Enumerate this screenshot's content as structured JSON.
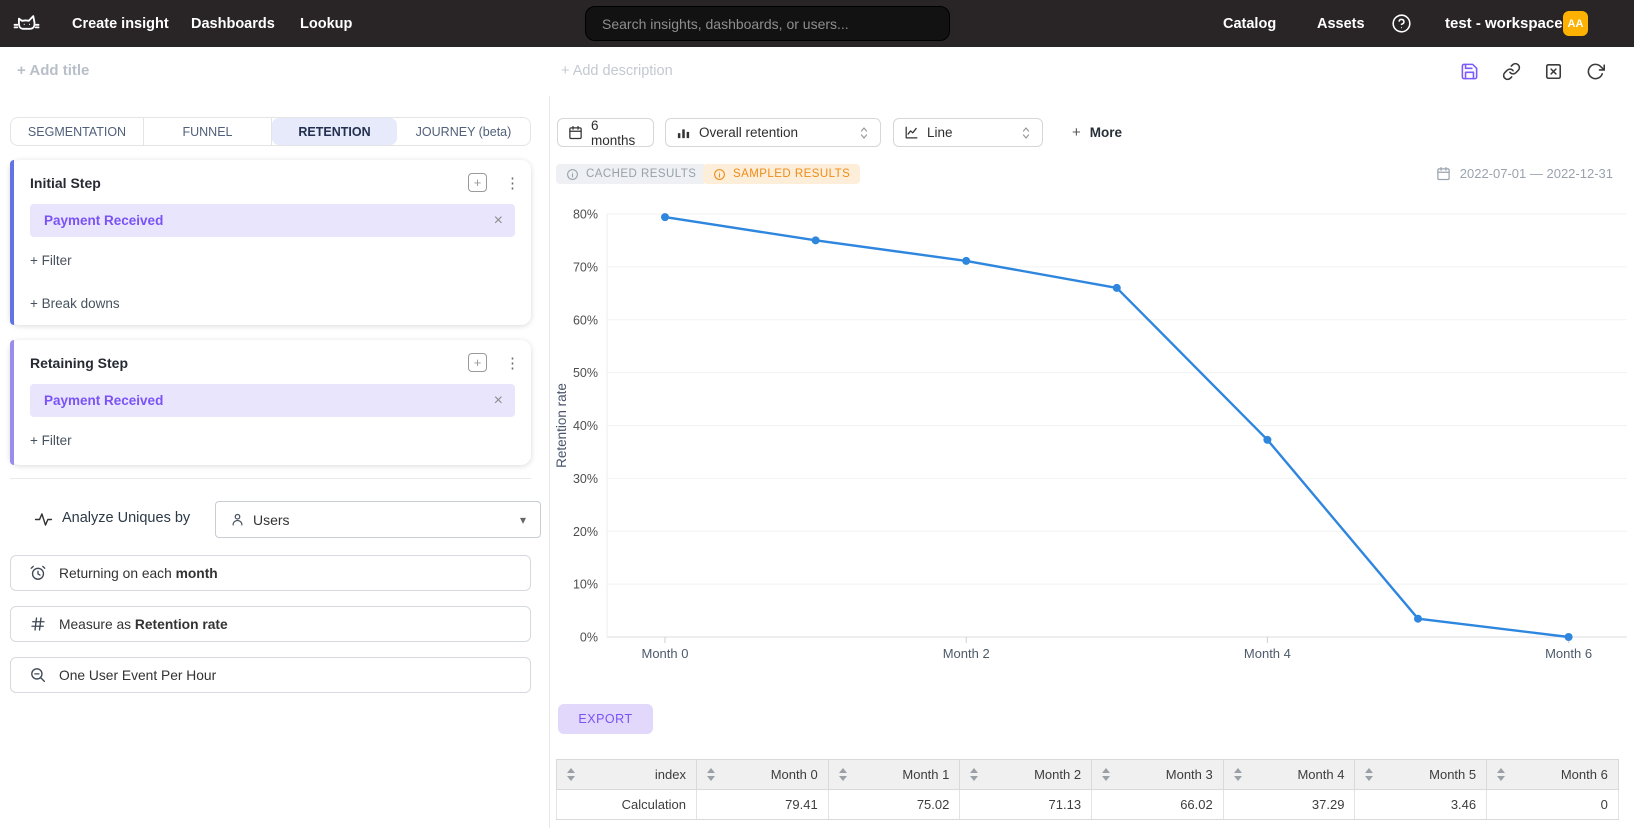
{
  "navbar": {
    "create_insight": "Create insight",
    "dashboards": "Dashboards",
    "lookup": "Lookup",
    "search_placeholder": "Search insights, dashboards, or users...",
    "catalog": "Catalog",
    "assets": "Assets",
    "workspace": "test - workspace",
    "avatar_initials": "AA"
  },
  "header": {
    "add_title": "+ Add title",
    "add_description": "+ Add description"
  },
  "tabs": [
    {
      "label": "SEGMENTATION",
      "active": false
    },
    {
      "label": "FUNNEL",
      "active": false
    },
    {
      "label": "RETENTION",
      "active": true
    },
    {
      "label": "JOURNEY (beta)",
      "active": false
    }
  ],
  "steps": [
    {
      "title": "Initial Step",
      "event": "Payment Received",
      "filter": "+ Filter",
      "breakdowns": "+ Break downs"
    },
    {
      "title": "Retaining Step",
      "event": "Payment Received",
      "filter": "+ Filter"
    }
  ],
  "analyze": {
    "label": "Analyze Uniques by",
    "selected": "Users"
  },
  "options": [
    {
      "prefix": "Returning on each ",
      "bold": "month"
    },
    {
      "prefix": "Measure as ",
      "bold": "Retention rate"
    },
    {
      "prefix": "One User Event Per Hour",
      "bold": ""
    }
  ],
  "controls": {
    "period": "6 months",
    "metric": "Overall retention",
    "chart_type": "Line",
    "more_plus": "+",
    "more": "More"
  },
  "badges": {
    "cached": "CACHED RESULTS",
    "sampled": "SAMPLED RESULTS"
  },
  "date_range": "2022-07-01 — 2022-12-31",
  "export_label": "EXPORT",
  "chart_data": {
    "type": "line",
    "categories": [
      "Month 0",
      "Month 1",
      "Month 2",
      "Month 3",
      "Month 4",
      "Month 5",
      "Month 6"
    ],
    "values": [
      79.41,
      75.02,
      71.13,
      66.02,
      37.29,
      3.46,
      0
    ],
    "title": "",
    "xlabel": "",
    "ylabel": "Retention rate",
    "ylim": [
      0,
      80
    ],
    "ytick_step": 10,
    "ytick_format": "percent",
    "x_label_every": 2,
    "grid": true,
    "legend": false,
    "line_color": "#2e86de",
    "point_color": "#2e86de"
  },
  "table": {
    "columns": [
      "index",
      "Month 0",
      "Month 1",
      "Month 2",
      "Month 3",
      "Month 4",
      "Month 5",
      "Month 6"
    ],
    "rows": [
      [
        "Calculation",
        "79.41",
        "75.02",
        "71.13",
        "66.02",
        "37.29",
        "3.46",
        "0"
      ]
    ]
  },
  "icons": {
    "plus": "+",
    "kebab": "⋮",
    "close_x": "×",
    "caret_down": "▾"
  },
  "colors": {
    "accent_purple": "#7a52f5",
    "chip_bg": "#e9e5fc",
    "line_blue": "#2e86de",
    "avatar_bg": "#fcb103",
    "sampled_text": "#ef8b16",
    "navbar_bg": "#292425"
  }
}
